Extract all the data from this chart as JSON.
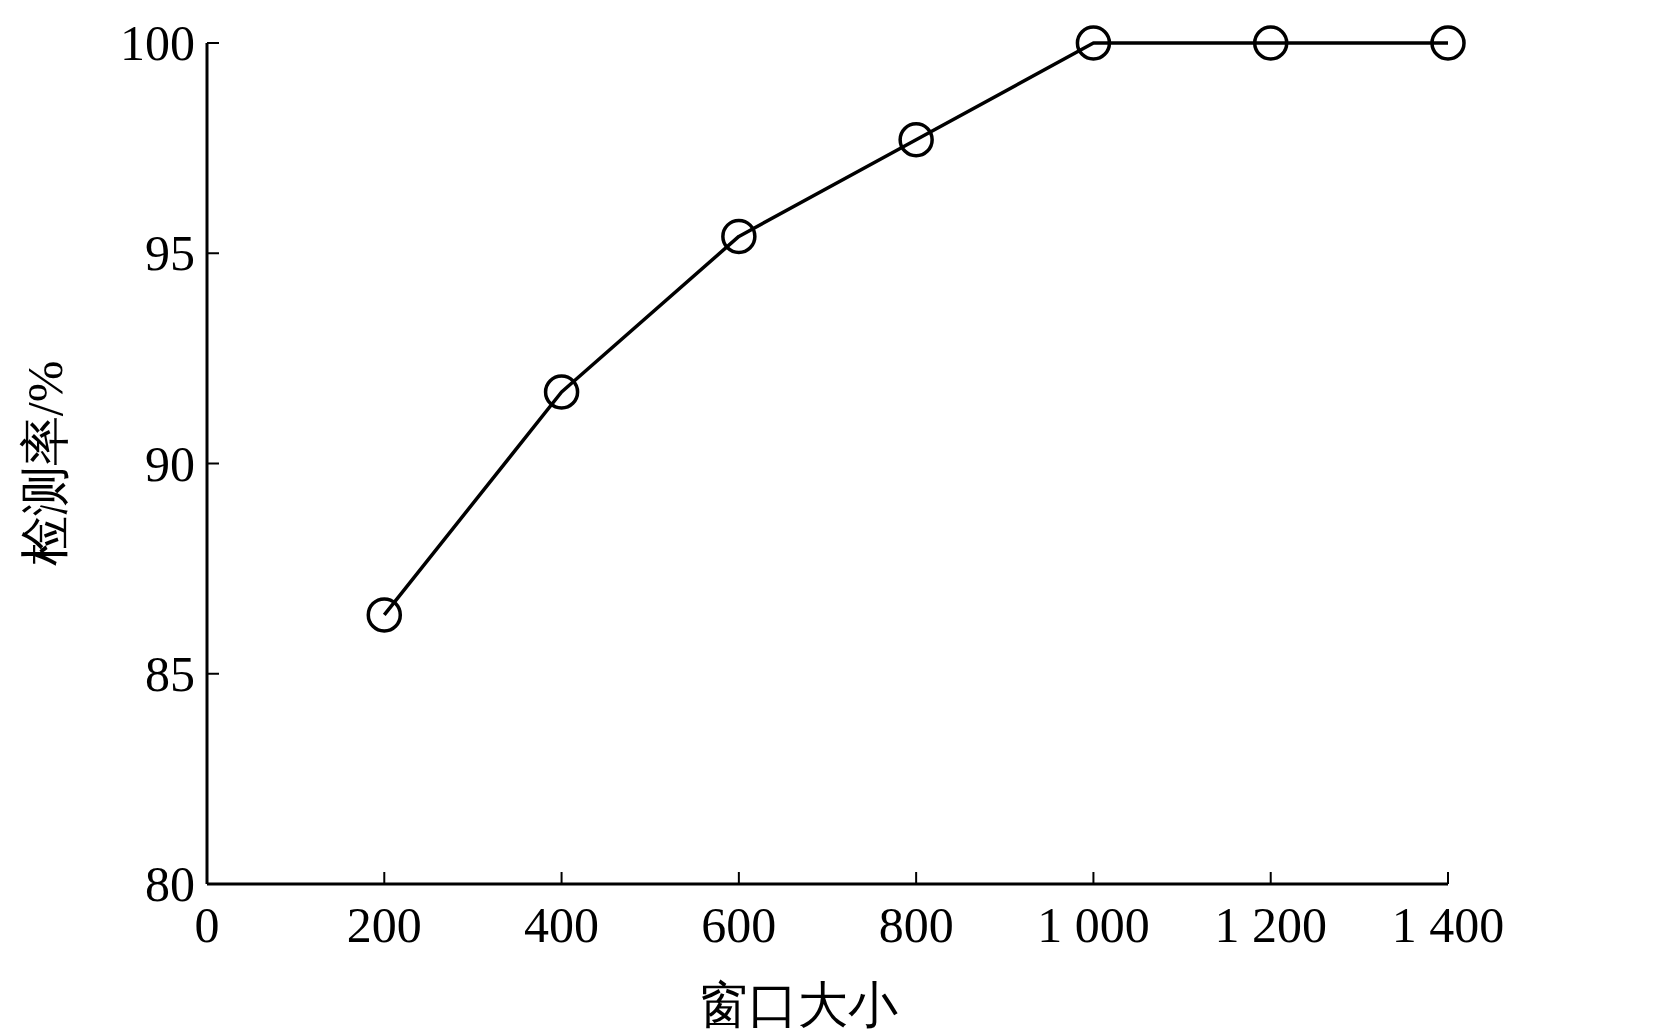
{
  "chart_data": {
    "type": "line",
    "xlabel": "窗口大小",
    "ylabel": "检测率/%",
    "x": [
      200,
      400,
      600,
      800,
      1000,
      1200,
      1400
    ],
    "series": [
      {
        "color": "#000000",
        "values": [
          86.4,
          91.7,
          95.4,
          97.7,
          100,
          100,
          100
        ]
      }
    ],
    "xlim": [
      0,
      1400
    ],
    "ylim": [
      80,
      100
    ],
    "xticks": [
      0,
      200,
      400,
      600,
      800,
      {
        "value": 1000,
        "label": "1 000"
      },
      {
        "value": 1200,
        "label": "1 200"
      },
      {
        "value": 1400,
        "label": "1 400"
      }
    ],
    "yticks": [
      80,
      85,
      90,
      95,
      100
    ],
    "marker": "circle",
    "line_style": "solid",
    "grid": false
  }
}
